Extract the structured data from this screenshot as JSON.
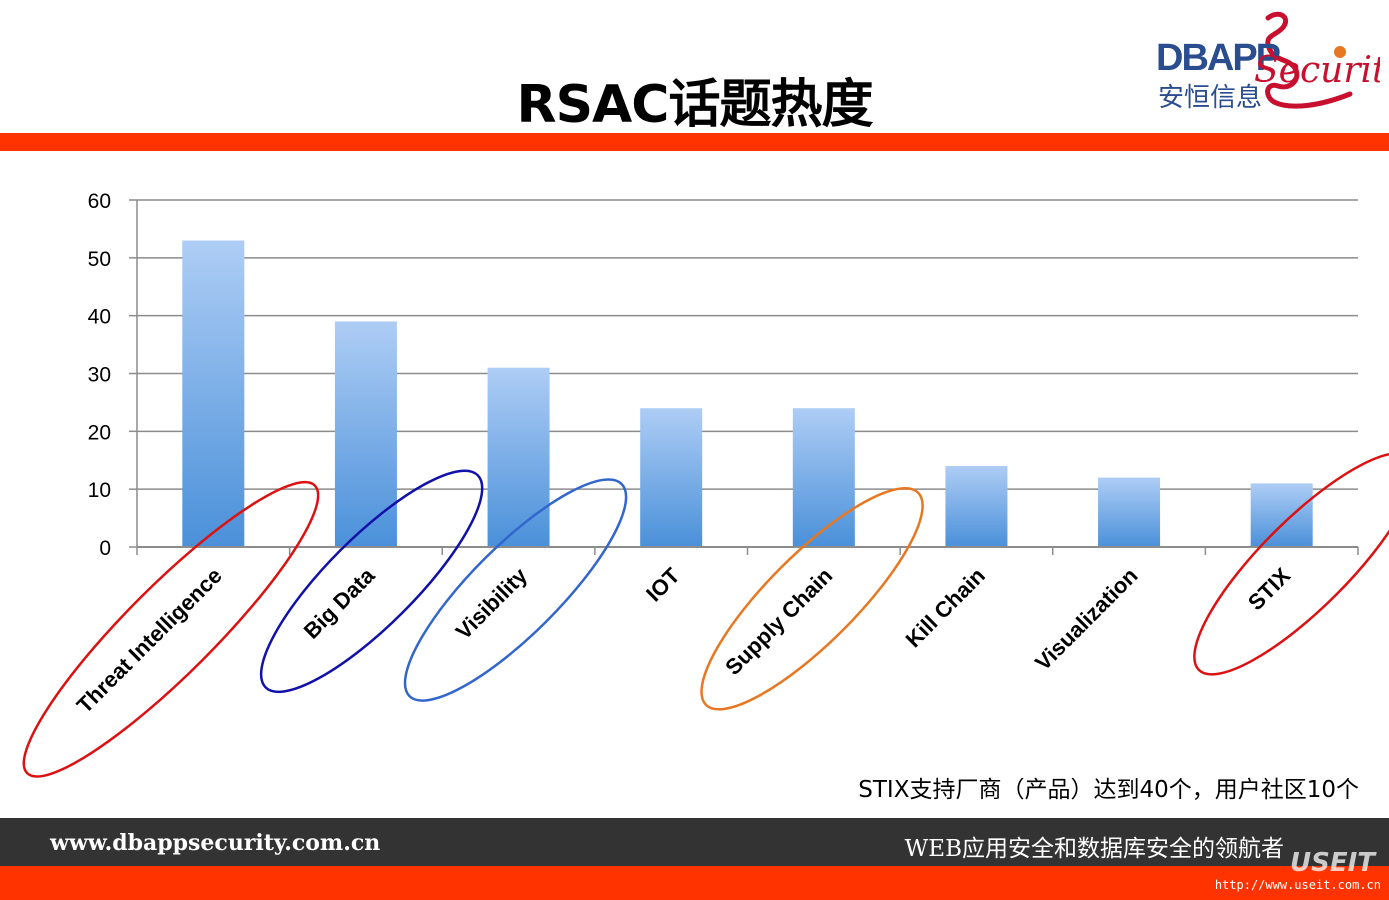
{
  "title": "RSAC话题热度",
  "logo": {
    "brand_main": "DBAPP",
    "brand_script": "Security",
    "brand_cn": "安恒信息"
  },
  "note": "STIX支持厂商（产品）达到40个，用户社区10个",
  "footer": {
    "url": "www.dbappsecurity.com.cn",
    "slogan": "WEB应用安全和数据库安全的领航者"
  },
  "watermark": {
    "brand": "USEIT",
    "url": "http://www.useit.com.cn"
  },
  "colors": {
    "accent_band": "#ff3300",
    "footer_bg": "#333333",
    "bar_top": "#aecdf5",
    "bar_bottom": "#4a90d9"
  },
  "chart_data": {
    "type": "bar",
    "title": "",
    "xlabel": "",
    "ylabel": "",
    "ylim": [
      0,
      60
    ],
    "yticks": [
      0,
      10,
      20,
      30,
      40,
      50,
      60
    ],
    "grid": true,
    "categories": [
      "Threat Intelligence",
      "Big Data",
      "Visibility",
      "IOT",
      "Supply Chain",
      "Kill Chain",
      "Visualization",
      "STIX"
    ],
    "values": [
      53,
      39,
      31,
      24,
      24,
      14,
      12,
      11
    ],
    "annotations": [
      {
        "type": "ellipse",
        "category": "Threat Intelligence",
        "color": "#dd1111"
      },
      {
        "type": "ellipse",
        "category": "Big Data",
        "color": "#1111aa"
      },
      {
        "type": "ellipse",
        "category": "Visibility",
        "color": "#3366cc"
      },
      {
        "type": "ellipse",
        "category": "Supply Chain",
        "color": "#e87722"
      },
      {
        "type": "ellipse",
        "category": "STIX",
        "color": "#dd1111"
      }
    ]
  }
}
